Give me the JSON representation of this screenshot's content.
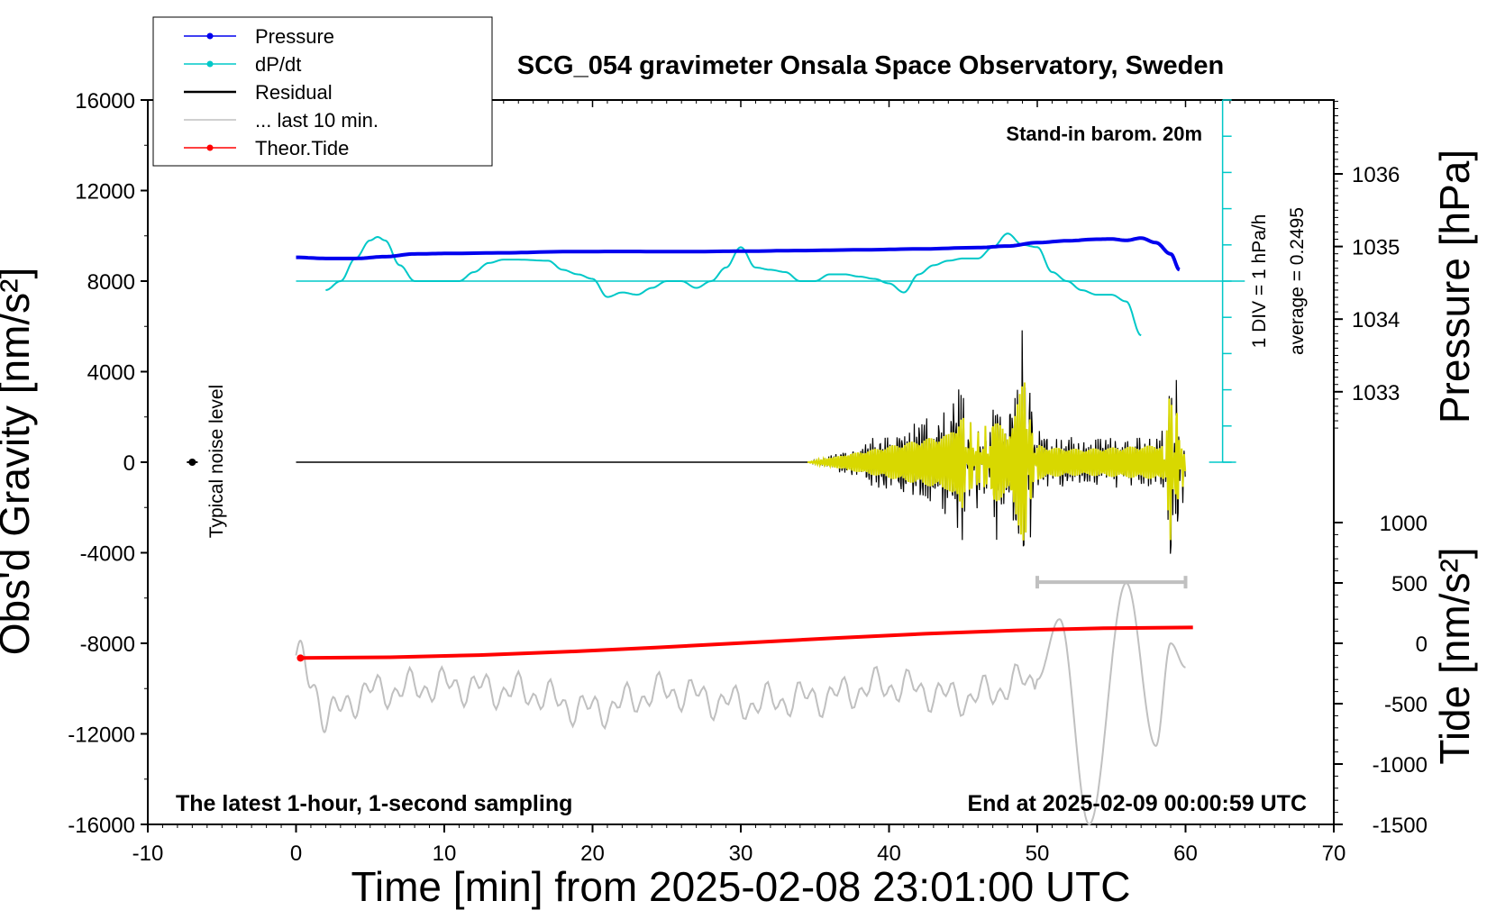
{
  "chart_data": {
    "type": "line",
    "title": "SCG_054 gravimeter Onsala Space Observatory, Sweden",
    "xlabel": "Time [min] from 2025-02-08 23:01:00 UTC",
    "ylabel_left": "Obs'd Gravity [nm/s²]",
    "ylabel_right_top": "Pressure [hPa]",
    "ylabel_right_bottom": "Tide [nm/s²]",
    "xlim": [
      -10,
      70
    ],
    "ylim_left": [
      -16000,
      16000
    ],
    "x_ticks": [
      -10,
      0,
      10,
      20,
      30,
      40,
      50,
      60,
      70
    ],
    "x_tick_labels": [
      "-10",
      "0",
      "10",
      "20",
      "30",
      "40",
      "50",
      "60",
      "70"
    ],
    "y_ticks_left": [
      16000,
      12000,
      8000,
      4000,
      0,
      -4000,
      -8000,
      -12000,
      -16000
    ],
    "y_tick_labels_left": [
      "16000",
      "12000",
      "8000",
      "4000",
      "0",
      "-4000",
      "-8000",
      "-12000",
      "-16000"
    ],
    "pressure_axis": {
      "ticks": [
        1036,
        1035,
        1034,
        1033
      ],
      "tick_labels": [
        "1036",
        "1035",
        "1034",
        "1033"
      ],
      "range_hpa": [
        1032.0,
        1037.0
      ]
    },
    "tide_axis": {
      "ticks": [
        1000,
        500,
        0,
        -500,
        -1000,
        -1500
      ],
      "tick_labels": [
        "1000",
        "500",
        "0",
        "-500",
        "-1000",
        "-1500"
      ],
      "range": [
        -1500,
        1500
      ]
    },
    "legend": [
      {
        "label": "Pressure",
        "color": "#0000ee",
        "marker": true
      },
      {
        "label": "dP/dt",
        "color": "#00c8c8",
        "marker": true
      },
      {
        "label": "Residual",
        "color": "#000000",
        "marker": false
      },
      {
        "label": "... last 10 min.",
        "color": "#c0c0c0",
        "marker": false
      },
      {
        "label": "Theor.Tide",
        "color": "#ff0000",
        "marker": true
      }
    ],
    "annotations": {
      "barometer": "Stand-in barom. 20m",
      "div_label": "1 DIV = 1 hPa/h",
      "average_label": "average = 0.2495",
      "noise_label": "Typical noise level",
      "footer_left": "The latest 1-hour, 1-second sampling",
      "footer_right": "End at 2025-02-09 00:00:59 UTC"
    },
    "series": [
      {
        "name": "Pressure",
        "color": "#0000ee",
        "x": [
          0,
          2,
          4,
          6,
          8,
          10,
          14,
          18,
          22,
          26,
          30,
          34,
          38,
          42,
          46,
          48,
          50,
          52,
          54,
          55,
          56,
          57,
          58,
          59,
          59.6
        ],
        "y": [
          9050,
          9000,
          9000,
          9080,
          9200,
          9220,
          9250,
          9300,
          9310,
          9300,
          9320,
          9350,
          9380,
          9420,
          9480,
          9550,
          9700,
          9780,
          9850,
          9860,
          9800,
          9900,
          9700,
          9200,
          8500
        ]
      },
      {
        "name": "dP/dt",
        "color": "#00c8c8",
        "x": [
          2,
          3,
          4,
          5,
          5.5,
          6,
          7,
          8,
          9,
          10,
          11,
          12,
          13,
          14,
          15,
          17,
          18,
          19,
          20,
          21,
          22,
          23,
          24,
          25,
          26,
          27,
          28,
          29,
          30,
          31,
          32,
          33,
          34,
          35,
          36,
          37,
          38,
          39,
          40,
          41,
          42,
          43,
          44,
          45,
          46,
          47,
          48,
          49,
          50,
          51,
          52,
          53,
          54,
          55,
          56,
          57
        ],
        "y": [
          7600,
          8000,
          9000,
          9800,
          9950,
          9800,
          8700,
          8000,
          8000,
          8000,
          8000,
          8400,
          8800,
          8950,
          8950,
          8900,
          8500,
          8300,
          8100,
          7300,
          7500,
          7400,
          7700,
          8000,
          8000,
          7700,
          8000,
          8600,
          9500,
          8600,
          8500,
          8400,
          8000,
          8000,
          8300,
          8300,
          8200,
          8100,
          7900,
          7500,
          8300,
          8700,
          8900,
          9000,
          9000,
          9500,
          10100,
          9600,
          9500,
          8400,
          8000,
          7600,
          7400,
          7400,
          7100,
          5600
        ]
      },
      {
        "name": "Residual",
        "color": "#000000",
        "quiet_until_min": 34.5,
        "x": [
          34.5,
          40,
          44,
          45,
          45.5,
          46,
          46.5,
          47,
          48,
          49.2,
          49.5,
          50,
          51,
          53,
          55,
          57,
          58.5,
          59,
          59.4,
          59.8,
          60
        ],
        "y": [
          0,
          1100,
          1900,
          3300,
          -3000,
          2500,
          -2500,
          3400,
          1700,
          6000,
          -4000,
          1200,
          1000,
          900,
          1000,
          1100,
          1200,
          -5800,
          4800,
          -2000,
          900
        ]
      },
      {
        "name": "... last 10 min.",
        "color": "#c0c0c0",
        "tide_units": true,
        "x": [
          0,
          1,
          2,
          5,
          10,
          15,
          20,
          25,
          30,
          35,
          40,
          45,
          50,
          51.5,
          53.5,
          56,
          58,
          59,
          60
        ],
        "y": [
          -100,
          -300,
          -600,
          -400,
          -350,
          -400,
          -550,
          -400,
          -500,
          -450,
          -350,
          -450,
          -300,
          200,
          -1500,
          500,
          -850,
          0,
          -200
        ]
      },
      {
        "name": "Theor.Tide",
        "color": "#ff0000",
        "x": [
          0.3,
          60.5
        ],
        "y": [
          -8650,
          -7300
        ]
      }
    ],
    "noise_level": {
      "x": -7,
      "y": 0
    },
    "grey_bracket": {
      "x_start": 50,
      "x_end": 60,
      "y": -5300
    }
  }
}
